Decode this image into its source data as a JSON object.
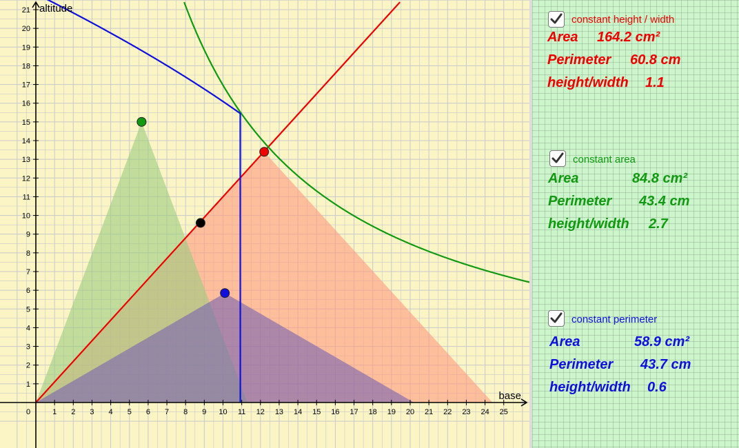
{
  "colors": {
    "background": "#fbf5c6",
    "grid": "#c8c8c8",
    "axis": "#000000",
    "height_width": "#ee0000",
    "area": "#119911",
    "perimeter": "#1010dd",
    "intersection": "#000000",
    "fill_red": "#ff9a80",
    "fill_green": "#9ccc80",
    "fill_blue": "#7763b0"
  },
  "chart_data": {
    "type": "line",
    "xlabel": "base",
    "ylabel": "altitude",
    "xlim": [
      0,
      26.25
    ],
    "ylim": [
      -0.5,
      21.4
    ],
    "x_ticks": [
      "1",
      "2",
      "3",
      "4",
      "5",
      "6",
      "7",
      "8",
      "9",
      "10",
      "11",
      "12",
      "13",
      "14",
      "15",
      "16",
      "17",
      "18",
      "19",
      "20",
      "21",
      "22",
      "23",
      "24",
      "25"
    ],
    "y_ticks": [
      "1",
      "2",
      "3",
      "4",
      "5",
      "6",
      "7",
      "8",
      "9",
      "10",
      "11",
      "12",
      "13",
      "14",
      "15",
      "16",
      "17",
      "18",
      "19",
      "20",
      "21"
    ],
    "origin_label": "0",
    "grid": true,
    "curves": {
      "height_width_ratio": 1.1,
      "area": 84.8,
      "perimeter": 43.7
    },
    "points": [
      {
        "series": "constant height / width",
        "x": 12.2,
        "y": 13.4,
        "color": "#ee0000"
      },
      {
        "series": "constant area",
        "x": 5.65,
        "y": 15.0,
        "color": "#119911"
      },
      {
        "series": "constant perimeter",
        "x": 10.1,
        "y": 5.85,
        "color": "#1010dd"
      },
      {
        "series": "intersection",
        "x": 8.8,
        "y": 9.6,
        "color": "#000000"
      }
    ],
    "triangles": [
      {
        "series": "constant height / width",
        "apex_x": 12.2,
        "apex_y": 13.4,
        "base": 24.4
      },
      {
        "series": "constant area",
        "apex_x": 5.65,
        "apex_y": 15.0,
        "base": 11.3
      },
      {
        "series": "constant perimeter",
        "apex_x": 10.1,
        "apex_y": 5.85,
        "base": 20.2
      }
    ]
  },
  "panels": [
    {
      "checkbox_label": "constant height / width",
      "checked": true,
      "area_label": "Area",
      "area_value": "164.2 cm²",
      "perimeter_label": "Perimeter",
      "perimeter_value": "60.8 cm",
      "ratio_label": "height/width",
      "ratio_value": "1.1"
    },
    {
      "checkbox_label": "constant area",
      "checked": true,
      "area_label": "Area",
      "area_value": "84.8 cm²",
      "perimeter_label": "Perimeter",
      "perimeter_value": "43.4 cm",
      "ratio_label": "height/width",
      "ratio_value": "2.7"
    },
    {
      "checkbox_label": "constant perimeter",
      "checked": true,
      "area_label": "Area",
      "area_value": "58.9 cm²",
      "perimeter_label": "Perimeter",
      "perimeter_value": "43.7 cm",
      "ratio_label": "height/width",
      "ratio_value": "0.6"
    }
  ]
}
